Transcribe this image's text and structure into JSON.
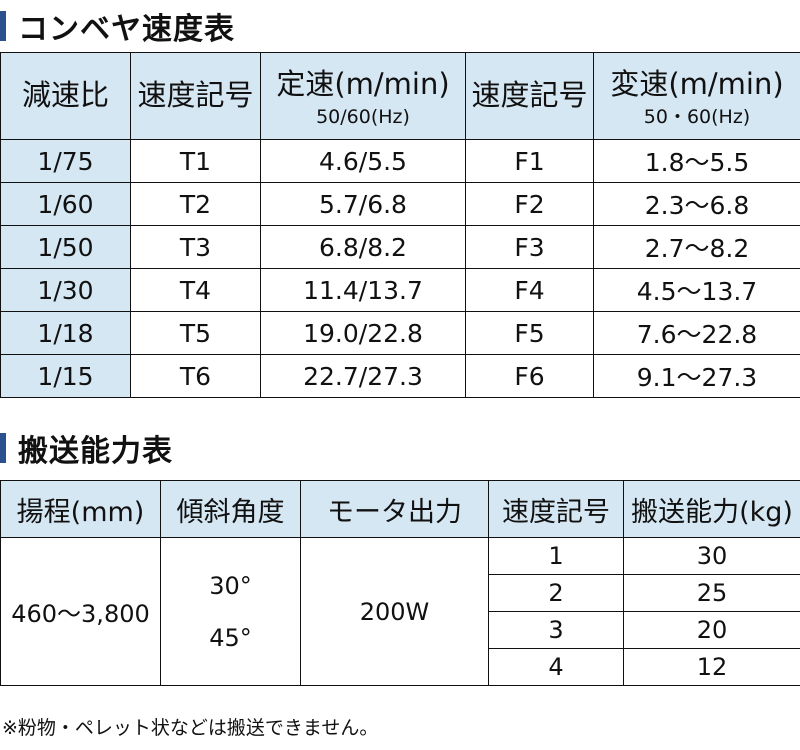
{
  "speed_section": {
    "title": "コンベヤ速度表",
    "headers": {
      "ratio": "減速比",
      "fixed_code": "速度記号",
      "fixed_speed": "定速(m/min)",
      "fixed_speed_sub": "50/60(Hz)",
      "var_code": "速度記号",
      "var_speed": "変速(m/min)",
      "var_speed_sub": "50・60(Hz)"
    },
    "rows": [
      {
        "ratio": "1/75",
        "fixed_code": "T1",
        "fixed_speed": "4.6/5.5",
        "var_code": "F1",
        "var_speed": "1.8〜5.5"
      },
      {
        "ratio": "1/60",
        "fixed_code": "T2",
        "fixed_speed": "5.7/6.8",
        "var_code": "F2",
        "var_speed": "2.3〜6.8"
      },
      {
        "ratio": "1/50",
        "fixed_code": "T3",
        "fixed_speed": "6.8/8.2",
        "var_code": "F3",
        "var_speed": "2.7〜8.2"
      },
      {
        "ratio": "1/30",
        "fixed_code": "T4",
        "fixed_speed": "11.4/13.7",
        "var_code": "F4",
        "var_speed": "4.5〜13.7"
      },
      {
        "ratio": "1/18",
        "fixed_code": "T5",
        "fixed_speed": "19.0/22.8",
        "var_code": "F5",
        "var_speed": "7.6〜22.8"
      },
      {
        "ratio": "1/15",
        "fixed_code": "T6",
        "fixed_speed": "22.7/27.3",
        "var_code": "F6",
        "var_speed": "9.1〜27.3"
      }
    ]
  },
  "capacity_section": {
    "title": "搬送能力表",
    "headers": {
      "lift": "揚程(mm)",
      "incline": "傾斜角度",
      "motor": "モータ出力",
      "speed_code": "速度記号",
      "capacity": "搬送能力(kg)"
    },
    "lift": "460〜3,800",
    "angles": [
      "30°",
      "45°"
    ],
    "motor": "200W",
    "rows": [
      {
        "speed_code": "1",
        "capacity": "30"
      },
      {
        "speed_code": "2",
        "capacity": "25"
      },
      {
        "speed_code": "3",
        "capacity": "20"
      },
      {
        "speed_code": "4",
        "capacity": "12"
      }
    ]
  },
  "footnote": "※粉物・ペレット状などは搬送できません。",
  "colors": {
    "header_bg": "#d6e7f4",
    "title_bar": "#2b4f8f"
  }
}
